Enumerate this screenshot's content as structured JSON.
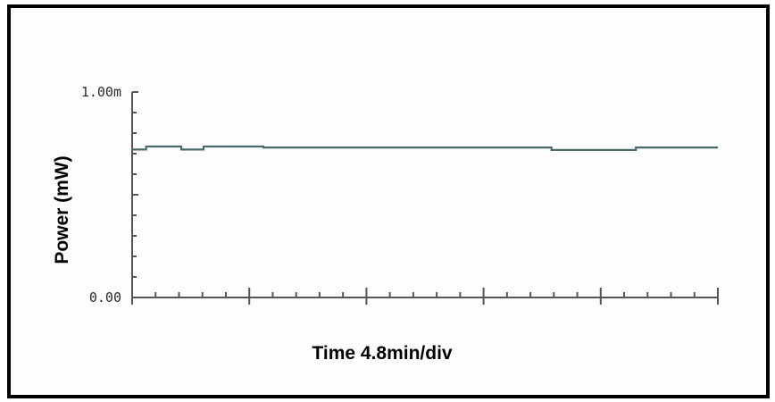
{
  "chart_data": {
    "type": "line",
    "title": "",
    "xlabel": "Time 4.8min/div",
    "ylabel": "Power (mW)",
    "x_divisions": 5,
    "ylim": [
      0,
      1.0
    ],
    "y_tick_labels": [
      {
        "value": 1.0,
        "label": "1.00m"
      },
      {
        "value": 0.0,
        "label": "0.00"
      }
    ],
    "grid": false,
    "series": [
      {
        "color": "#4a6a6a",
        "x_div": [
          0,
          0.12,
          0.12,
          0.42,
          0.42,
          0.61,
          0.61,
          1.12,
          1.12,
          3.58,
          3.58,
          4.3,
          4.3,
          5.0
        ],
        "y": [
          0.72,
          0.72,
          0.735,
          0.735,
          0.72,
          0.72,
          0.735,
          0.735,
          0.73,
          0.73,
          0.718,
          0.718,
          0.73,
          0.73
        ]
      }
    ],
    "colors": {
      "axis": "#555555",
      "frame": "#000000"
    }
  }
}
